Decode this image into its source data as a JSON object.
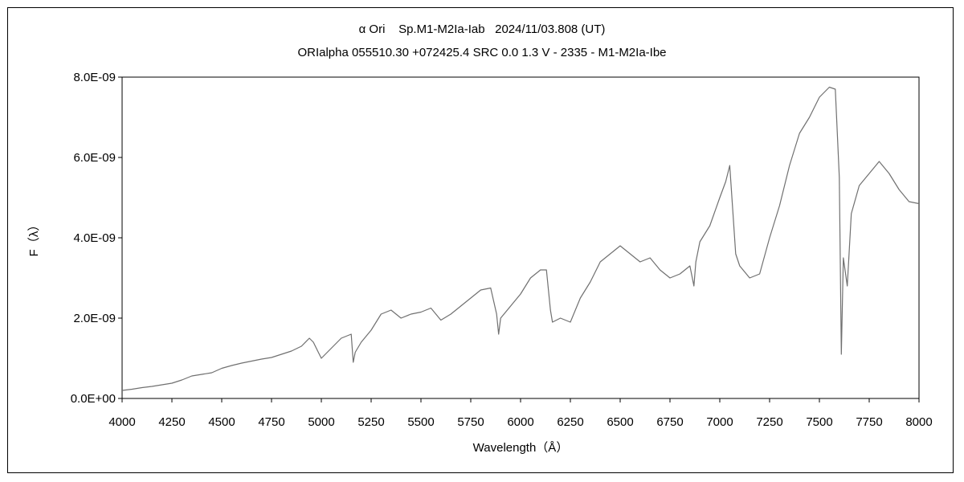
{
  "chart_data": {
    "type": "line",
    "title": "α Ori    Sp.M1-M2Ia-Iab   2024/11/03.808 (UT)",
    "subtitle": "ORIalpha 055510.30 +072425.4 SRC 0.0 1.3 V - 2335 - M1-M2Ia-Ibe",
    "xlabel": "Wavelength（Å）",
    "ylabel": "F（λ）",
    "xlim": [
      4000,
      8000
    ],
    "ylim": [
      0,
      8e-09
    ],
    "x_ticks": [
      "4000",
      "4250",
      "4500",
      "4750",
      "5000",
      "5250",
      "5500",
      "5750",
      "6000",
      "6250",
      "6500",
      "6750",
      "7000",
      "7250",
      "7500",
      "7750",
      "8000"
    ],
    "y_ticks": [
      "0.0E+00",
      "2.0E-09",
      "4.0E-09",
      "6.0E-09",
      "8.0E-09"
    ],
    "grid": false,
    "legend": "none",
    "line_color": "#707070",
    "series": [
      {
        "x": [
          4000,
          4050,
          4100,
          4150,
          4200,
          4250,
          4300,
          4350,
          4400,
          4450,
          4500,
          4550,
          4600,
          4650,
          4700,
          4750,
          4800,
          4850,
          4900,
          4940,
          4960,
          4980,
          5000,
          5050,
          5100,
          5150,
          5160,
          5170,
          5200,
          5250,
          5300,
          5350,
          5400,
          5450,
          5500,
          5550,
          5600,
          5650,
          5700,
          5750,
          5800,
          5850,
          5880,
          5890,
          5900,
          5950,
          6000,
          6050,
          6100,
          6130,
          6150,
          6160,
          6200,
          6250,
          6300,
          6350,
          6400,
          6450,
          6500,
          6550,
          6600,
          6650,
          6700,
          6750,
          6800,
          6850,
          6870,
          6880,
          6900,
          6950,
          7000,
          7030,
          7050,
          7080,
          7100,
          7150,
          7200,
          7250,
          7300,
          7350,
          7400,
          7450,
          7500,
          7550,
          7580,
          7600,
          7610,
          7620,
          7640,
          7660,
          7700,
          7750,
          7800,
          7850,
          7900,
          7950,
          8000
        ],
        "y": [
          2e-10,
          2.3e-10,
          2.7e-10,
          3e-10,
          3.4e-10,
          3.8e-10,
          4.6e-10,
          5.6e-10,
          6e-10,
          6.4e-10,
          7.5e-10,
          8.2e-10,
          8.8e-10,
          9.3e-10,
          9.8e-10,
          1.02e-09,
          1.1e-09,
          1.18e-09,
          1.3e-09,
          1.5e-09,
          1.4e-09,
          1.2e-09,
          1e-09,
          1.25e-09,
          1.5e-09,
          1.6e-09,
          9e-10,
          1.15e-09,
          1.4e-09,
          1.7e-09,
          2.1e-09,
          2.2e-09,
          2e-09,
          2.1e-09,
          2.15e-09,
          2.25e-09,
          1.95e-09,
          2.1e-09,
          2.3e-09,
          2.5e-09,
          2.7e-09,
          2.75e-09,
          2.1e-09,
          1.6e-09,
          2e-09,
          2.3e-09,
          2.6e-09,
          3e-09,
          3.2e-09,
          3.2e-09,
          2.2e-09,
          1.9e-09,
          2e-09,
          1.9e-09,
          2.5e-09,
          2.9e-09,
          3.4e-09,
          3.6e-09,
          3.8e-09,
          3.6e-09,
          3.4e-09,
          3.5e-09,
          3.2e-09,
          3e-09,
          3.1e-09,
          3.3e-09,
          2.8e-09,
          3.4e-09,
          3.9e-09,
          4.3e-09,
          5e-09,
          5.4e-09,
          5.8e-09,
          3.6e-09,
          3.3e-09,
          3e-09,
          3.1e-09,
          4e-09,
          4.8e-09,
          5.8e-09,
          6.6e-09,
          7e-09,
          7.5e-09,
          7.75e-09,
          7.7e-09,
          5.5e-09,
          1.1e-09,
          3.5e-09,
          2.8e-09,
          4.6e-09,
          5.3e-09,
          5.6e-09,
          5.9e-09,
          5.6e-09,
          5.2e-09,
          4.9e-09,
          4.85e-09
        ]
      }
    ]
  }
}
